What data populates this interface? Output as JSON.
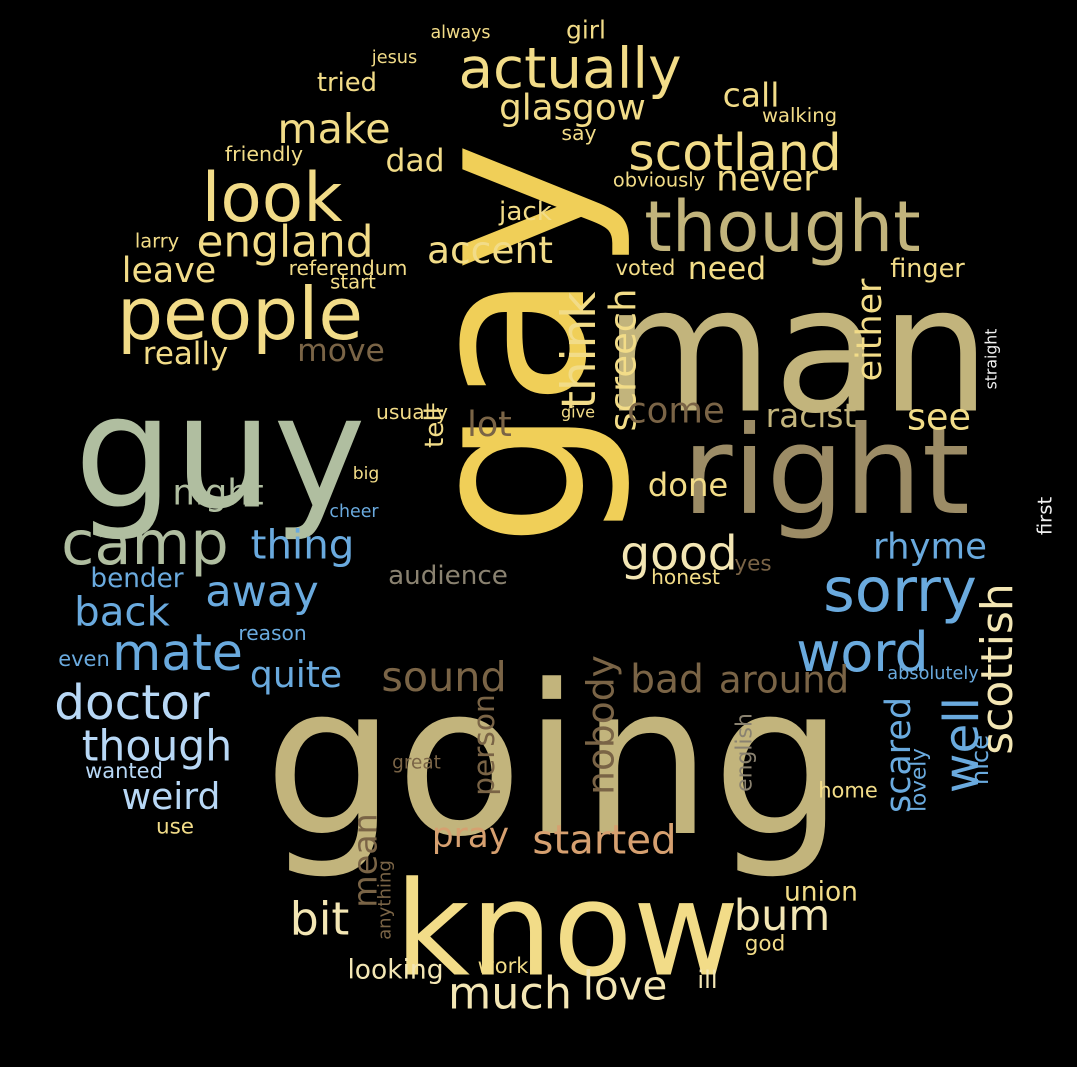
{
  "word_cloud": {
    "background": "#000000",
    "palette": {
      "gold": "#f0cf58",
      "khaki": "#c2b47c",
      "tan": "#9c8c66",
      "sage": "#b0bea0",
      "sky": "#6aaade",
      "pale_blue": "#b8d8f6",
      "light_gold": "#f2dc88",
      "brown": "#7a6446",
      "peach": "#d6a070",
      "grey": "#8a8270",
      "cream": "#f3e6b4",
      "white": "#f0f0f0"
    },
    "words": [
      {
        "text": "gay",
        "color": "gold",
        "rotation": 90
      },
      {
        "text": "going",
        "color": "khaki",
        "rotation": 0
      },
      {
        "text": "man",
        "color": "khaki",
        "rotation": 0
      },
      {
        "text": "right",
        "color": "tan",
        "rotation": 0
      },
      {
        "text": "know",
        "color": "light_gold",
        "rotation": 0
      },
      {
        "text": "guy",
        "color": "sage",
        "rotation": 0
      },
      {
        "text": "thought",
        "color": "khaki",
        "rotation": 0
      },
      {
        "text": "look",
        "color": "light_gold",
        "rotation": 0
      },
      {
        "text": "people",
        "color": "light_gold",
        "rotation": 0
      },
      {
        "text": "actually",
        "color": "light_gold",
        "rotation": 0
      },
      {
        "text": "scotland",
        "color": "light_gold",
        "rotation": 0
      },
      {
        "text": "sorry",
        "color": "sky",
        "rotation": 0
      },
      {
        "text": "camp",
        "color": "sage",
        "rotation": 0
      },
      {
        "text": "word",
        "color": "sky",
        "rotation": 0
      },
      {
        "text": "england",
        "color": "light_gold",
        "rotation": 0
      },
      {
        "text": "make",
        "color": "light_gold",
        "rotation": 0
      },
      {
        "text": "glasgow",
        "color": "light_gold",
        "rotation": 0
      },
      {
        "text": "call",
        "color": "light_gold",
        "rotation": 0
      },
      {
        "text": "accent",
        "color": "light_gold",
        "rotation": 0
      },
      {
        "text": "never",
        "color": "light_gold",
        "rotation": 0
      },
      {
        "text": "scottish",
        "color": "cream",
        "rotation": 90
      },
      {
        "text": "mate",
        "color": "sky",
        "rotation": 0
      },
      {
        "text": "doctor",
        "color": "pale_blue",
        "rotation": 0
      },
      {
        "text": "though",
        "color": "pale_blue",
        "rotation": 0
      },
      {
        "text": "much",
        "color": "cream",
        "rotation": 0
      },
      {
        "text": "love",
        "color": "cream",
        "rotation": 0
      },
      {
        "text": "bit",
        "color": "cream",
        "rotation": 0
      },
      {
        "text": "good",
        "color": "cream",
        "rotation": 0
      },
      {
        "text": "thing",
        "color": "sky",
        "rotation": 0
      },
      {
        "text": "away",
        "color": "sky",
        "rotation": 0
      },
      {
        "text": "back",
        "color": "sky",
        "rotation": 0
      },
      {
        "text": "weird",
        "color": "pale_blue",
        "rotation": 0
      },
      {
        "text": "well",
        "color": "sky",
        "rotation": 90
      },
      {
        "text": "scared",
        "color": "sky",
        "rotation": 90
      },
      {
        "text": "think",
        "color": "light_gold",
        "rotation": 90
      },
      {
        "text": "screech",
        "color": "light_gold",
        "rotation": 90
      },
      {
        "text": "bum",
        "color": "cream",
        "rotation": 0
      },
      {
        "text": "sound",
        "color": "brown",
        "rotation": 0
      },
      {
        "text": "bad",
        "color": "brown",
        "rotation": 0
      },
      {
        "text": "around",
        "color": "brown",
        "rotation": 0
      },
      {
        "text": "started",
        "color": "peach",
        "rotation": 0
      },
      {
        "text": "rhyme",
        "color": "sky",
        "rotation": 0
      },
      {
        "text": "night",
        "color": "sage",
        "rotation": 0
      },
      {
        "text": "either",
        "color": "light_gold",
        "rotation": 90
      },
      {
        "text": "quite",
        "color": "sky",
        "rotation": 0
      },
      {
        "text": "come",
        "color": "brown",
        "rotation": 0
      },
      {
        "text": "racist",
        "color": "khaki",
        "rotation": 0
      },
      {
        "text": "see",
        "color": "light_gold",
        "rotation": 0
      },
      {
        "text": "lot",
        "color": "brown",
        "rotation": 0
      },
      {
        "text": "nobody",
        "color": "brown",
        "rotation": 90
      },
      {
        "text": "pray",
        "color": "peach",
        "rotation": 0
      },
      {
        "text": "leave",
        "color": "light_gold",
        "rotation": 0
      },
      {
        "text": "really",
        "color": "light_gold",
        "rotation": 0
      },
      {
        "text": "move",
        "color": "brown",
        "rotation": 0
      },
      {
        "text": "dad",
        "color": "light_gold",
        "rotation": 0
      },
      {
        "text": "need",
        "color": "light_gold",
        "rotation": 0
      },
      {
        "text": "done",
        "color": "light_gold",
        "rotation": 0
      },
      {
        "text": "tried",
        "color": "light_gold",
        "rotation": 0
      },
      {
        "text": "girl",
        "color": "light_gold",
        "rotation": 0
      },
      {
        "text": "jack",
        "color": "light_gold",
        "rotation": 0
      },
      {
        "text": "finger",
        "color": "light_gold",
        "rotation": 0
      },
      {
        "text": "audience",
        "color": "grey",
        "rotation": 0
      },
      {
        "text": "mean",
        "color": "brown",
        "rotation": 90
      },
      {
        "text": "person",
        "color": "brown",
        "rotation": 90
      },
      {
        "text": "english",
        "color": "grey",
        "rotation": 90
      },
      {
        "text": "nice",
        "color": "sky",
        "rotation": 90
      },
      {
        "text": "lovely",
        "color": "sky",
        "rotation": 90
      },
      {
        "text": "union",
        "color": "light_gold",
        "rotation": 0
      },
      {
        "text": "looking",
        "color": "cream",
        "rotation": 0
      },
      {
        "text": "ill",
        "color": "cream",
        "rotation": 0
      },
      {
        "text": "bender",
        "color": "sky",
        "rotation": 0
      },
      {
        "text": "tell",
        "color": "light_gold",
        "rotation": 90
      },
      {
        "text": "home",
        "color": "light_gold",
        "rotation": 0
      },
      {
        "text": "friendly",
        "color": "light_gold",
        "rotation": 0
      },
      {
        "text": "walking",
        "color": "light_gold",
        "rotation": 0
      },
      {
        "text": "obviously",
        "color": "light_gold",
        "rotation": 0
      },
      {
        "text": "referendum",
        "color": "light_gold",
        "rotation": 0
      },
      {
        "text": "start",
        "color": "light_gold",
        "rotation": 0
      },
      {
        "text": "voted",
        "color": "light_gold",
        "rotation": 0
      },
      {
        "text": "straight",
        "color": "white",
        "rotation": 90
      },
      {
        "text": "usually",
        "color": "light_gold",
        "rotation": 0
      },
      {
        "text": "give",
        "color": "light_gold",
        "rotation": 0
      },
      {
        "text": "big",
        "color": "light_gold",
        "rotation": 0
      },
      {
        "text": "cheer",
        "color": "sky",
        "rotation": 0
      },
      {
        "text": "first",
        "color": "white",
        "rotation": 90
      },
      {
        "text": "honest",
        "color": "light_gold",
        "rotation": 0
      },
      {
        "text": "yes",
        "color": "brown",
        "rotation": 0
      },
      {
        "text": "reason",
        "color": "sky",
        "rotation": 0
      },
      {
        "text": "even",
        "color": "sky",
        "rotation": 0
      },
      {
        "text": "absolutely",
        "color": "sky",
        "rotation": 0
      },
      {
        "text": "wanted",
        "color": "pale_blue",
        "rotation": 0
      },
      {
        "text": "great",
        "color": "brown",
        "rotation": 0
      },
      {
        "text": "use",
        "color": "light_gold",
        "rotation": 0
      },
      {
        "text": "anything",
        "color": "brown",
        "rotation": 90
      },
      {
        "text": "work",
        "color": "light_gold",
        "rotation": 0
      },
      {
        "text": "god",
        "color": "light_gold",
        "rotation": 0
      },
      {
        "text": "larry",
        "color": "light_gold",
        "rotation": 0
      },
      {
        "text": "always",
        "color": "light_gold",
        "rotation": 0
      },
      {
        "text": "jesus",
        "color": "light_gold",
        "rotation": 0
      },
      {
        "text": "say",
        "color": "light_gold",
        "rotation": 0
      }
    ]
  }
}
